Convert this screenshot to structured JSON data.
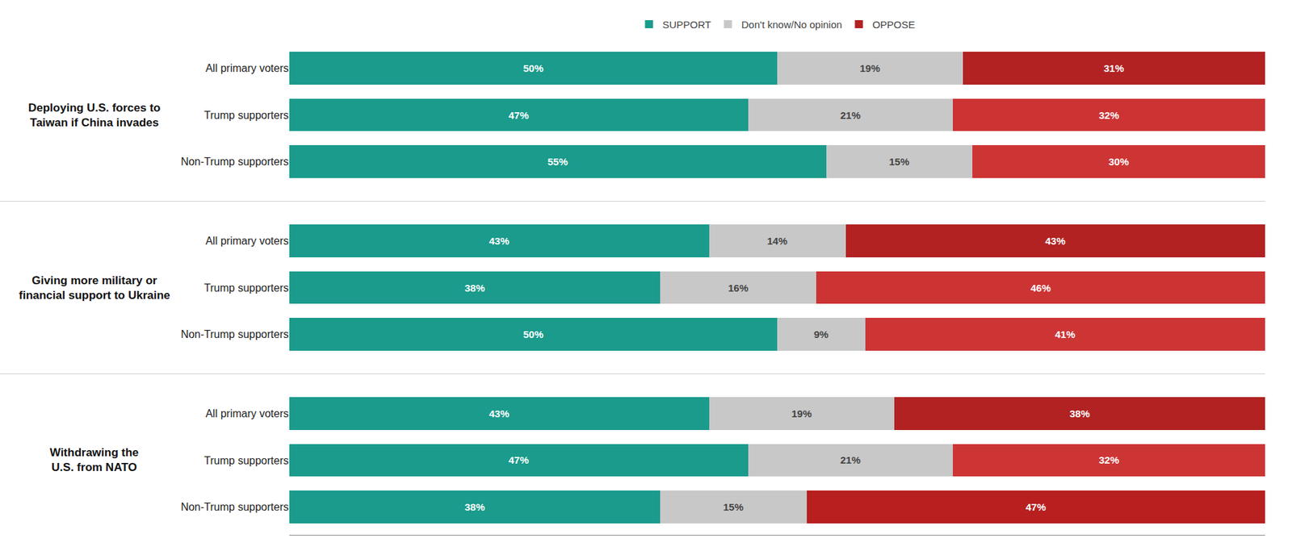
{
  "chart_data": {
    "type": "bar",
    "orientation": "horizontal",
    "stacked": true,
    "data_labels": true,
    "grid": false,
    "tick_labels": "y",
    "legend": "top",
    "xlim": [
      0,
      100
    ],
    "groups": [
      {
        "label": "Deploying U.S. forces to\nTaiwan if China invades",
        "categories": [
          "All primary voters",
          "Trump supporters",
          "Non-Trump supporters"
        ]
      },
      {
        "label": "Giving more military or\nfinancial support to Ukraine",
        "categories": [
          "All primary voters",
          "Trump supporters",
          "Non-Trump supporters"
        ]
      },
      {
        "label": "Withdrawing the\nU.S. from NATO",
        "categories": [
          "All primary voters",
          "Trump supporters",
          "Non-Trump supporters"
        ]
      }
    ],
    "series": [
      {
        "name": "SUPPORT",
        "color": "#1a9b8c",
        "values": [
          50,
          47,
          55,
          43,
          38,
          50,
          43,
          47,
          38
        ],
        "value_labels": [
          "50%",
          "47%",
          "55%",
          "43%",
          "38%",
          "50%",
          "43%",
          "47%",
          "38%"
        ]
      },
      {
        "name": "Don't know/No opinion",
        "color": "#c8c8c8",
        "values": [
          19,
          21,
          15,
          14,
          16,
          9,
          19,
          21,
          15
        ],
        "value_labels": [
          "19%",
          "21%",
          "15%",
          "14%",
          "16%",
          "9%",
          "19%",
          "21%",
          "15%"
        ]
      },
      {
        "name": "OPPOSE",
        "colors": [
          "#b22222",
          "#cc3333",
          "#cd3535",
          "#b22222",
          "#cc3333",
          "#cd3535",
          "#b22222",
          "#cd3535",
          "#b82020"
        ],
        "values": [
          31,
          32,
          30,
          43,
          46,
          41,
          38,
          32,
          47
        ],
        "value_labels": [
          "31%",
          "32%",
          "30%",
          "43%",
          "46%",
          "41%",
          "38%",
          "32%",
          "47%"
        ]
      }
    ]
  }
}
